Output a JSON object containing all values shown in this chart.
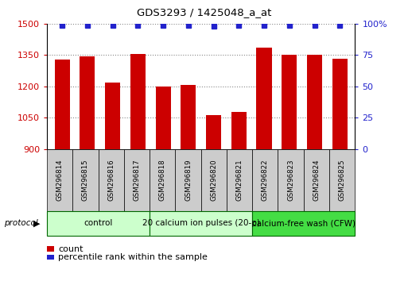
{
  "title": "GDS3293 / 1425048_a_at",
  "samples": [
    "GSM296814",
    "GSM296815",
    "GSM296816",
    "GSM296817",
    "GSM296818",
    "GSM296819",
    "GSM296820",
    "GSM296821",
    "GSM296822",
    "GSM296823",
    "GSM296824",
    "GSM296825"
  ],
  "counts": [
    1330,
    1345,
    1218,
    1355,
    1200,
    1207,
    1063,
    1078,
    1385,
    1350,
    1352,
    1332
  ],
  "percentile_ranks": [
    99,
    99,
    99,
    99,
    99,
    99,
    98,
    99,
    99,
    99,
    99,
    99
  ],
  "bar_color": "#cc0000",
  "dot_color": "#2222cc",
  "ylim_left": [
    900,
    1500
  ],
  "ylim_right": [
    0,
    100
  ],
  "yticks_left": [
    900,
    1050,
    1200,
    1350,
    1500
  ],
  "yticks_right": [
    0,
    25,
    50,
    75,
    100
  ],
  "group_configs": [
    {
      "start": 0,
      "end": 3,
      "label": "control",
      "color": "#ccffcc"
    },
    {
      "start": 4,
      "end": 7,
      "label": "20 calcium ion pulses (20-p)",
      "color": "#ccffcc"
    },
    {
      "start": 8,
      "end": 11,
      "label": "calcium-free wash (CFW)",
      "color": "#44dd44"
    }
  ],
  "protocol_label": "protocol",
  "legend_count_label": "count",
  "legend_pct_label": "percentile rank within the sample",
  "grid_color": "#888888",
  "tick_label_bg": "#cccccc",
  "bar_width": 0.6
}
